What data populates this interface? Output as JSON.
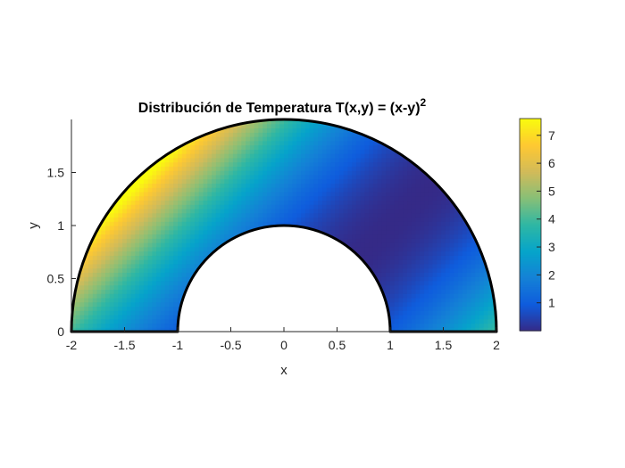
{
  "chart_data": {
    "type": "heatmap",
    "title_main": "Distribución de Temperatura T(x,y) = (x-y)",
    "title_sup": "2",
    "xlabel": "x",
    "ylabel": "y",
    "xlim": [
      -2,
      2
    ],
    "ylim": [
      0,
      2
    ],
    "x_ticks": [
      "-2",
      "-1.5",
      "-1",
      "-0.5",
      "0",
      "0.5",
      "1",
      "1.5",
      "2"
    ],
    "y_ticks": [
      "0",
      "0.5",
      "1",
      "1.5"
    ],
    "domain": {
      "shape": "half-annulus",
      "inner_radius": 1,
      "outer_radius": 2
    },
    "function": "(x-y)^2",
    "colorbar": {
      "colormap": "parula",
      "range": [
        0,
        7.6
      ],
      "ticks": [
        "1",
        "2",
        "3",
        "4",
        "5",
        "6",
        "7"
      ]
    },
    "colors": {
      "parula_stops": [
        "#352a87",
        "#0f5cdd",
        "#1481d6",
        "#06a4ca",
        "#2eb7a4",
        "#87bf77",
        "#d1bb59",
        "#fec832",
        "#f9fb0e"
      ],
      "boundary": "#000000"
    }
  }
}
